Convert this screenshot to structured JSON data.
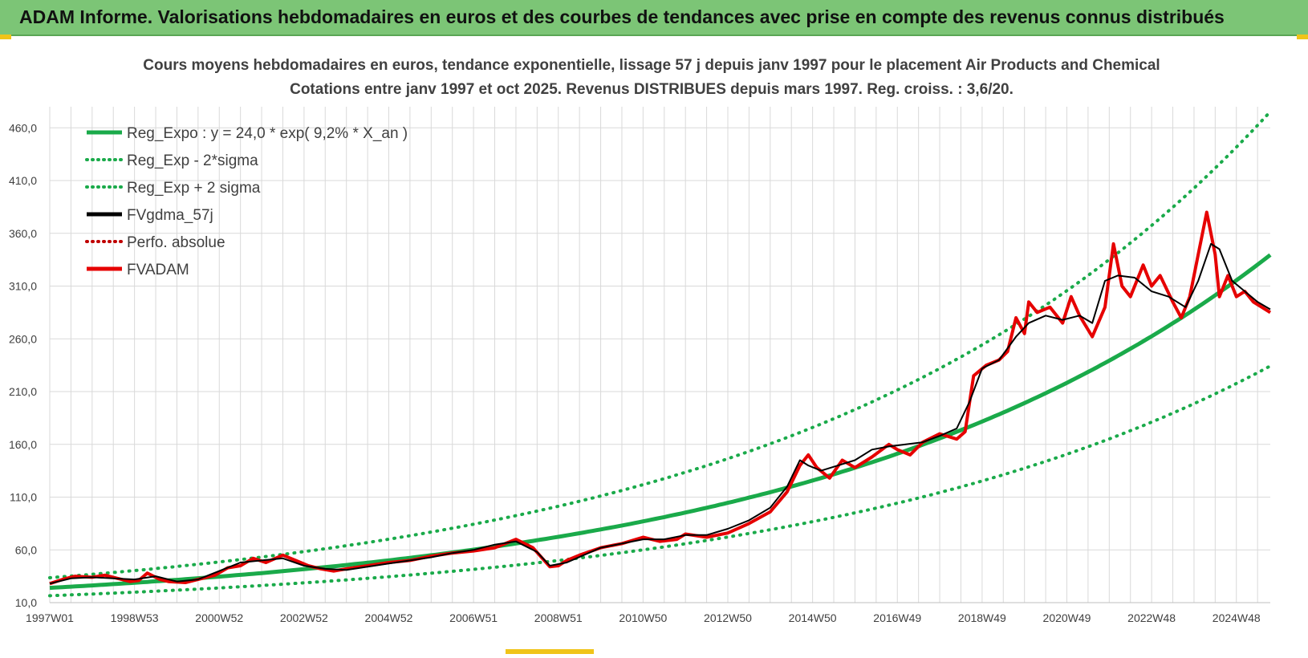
{
  "header": {
    "title": "ADAM Informe. Valorisations hebdomadaires en euros et des courbes de tendances avec prise en compte des revenus connus distribués"
  },
  "colors": {
    "header_bg": "#7cc576",
    "trend": "#1aaa4a",
    "fvadam": "#e60000",
    "fvgdma": "#000000",
    "perfo": "#c00000",
    "grid": "#d9d9d9",
    "corner_accent": "#f0c419"
  },
  "chart_data": {
    "type": "line",
    "title": "Cours moyens hebdomadaires en euros, tendance exponentielle, lissage 57 j depuis janv 1997 pour le placement Air Products and Chemical",
    "subtitle": "Cotations entre janv 1997 et oct 2025. Revenus DISTRIBUES depuis mars 1997. Reg. croiss. : 3,6/20.",
    "xlabel": "",
    "ylabel": "",
    "xlim": [
      1997.0,
      2025.8
    ],
    "ylim": [
      10,
      480
    ],
    "y_ticks": [
      10,
      60,
      110,
      160,
      210,
      260,
      310,
      360,
      410,
      460
    ],
    "y_tick_labels": [
      "10,0",
      "60,0",
      "110,0",
      "160,0",
      "210,0",
      "260,0",
      "310,0",
      "360,0",
      "410,0",
      "460,0"
    ],
    "x_ticks": [
      1997.0,
      1999.0,
      2001.0,
      2003.0,
      2005.0,
      2007.0,
      2009.0,
      2011.0,
      2013.0,
      2015.0,
      2017.0,
      2019.0,
      2021.0,
      2023.0,
      2025.0
    ],
    "x_tick_labels": [
      "1997W01",
      "1998W53",
      "2000W52",
      "2002W52",
      "2004W52",
      "2006W51",
      "2008W51",
      "2010W50",
      "2012W50",
      "2014W50",
      "2016W49",
      "2018W49",
      "2020W49",
      "2022W48",
      "2024W48"
    ],
    "legend": [
      {
        "label": "Reg_Expo : y = 24,0 * exp( 9,2% *  X_an )",
        "style": "solid",
        "color": "#1aaa4a"
      },
      {
        "label": "Reg_Exp - 2*sigma",
        "style": "dotted",
        "color": "#1aaa4a"
      },
      {
        "label": "Reg_Exp + 2 sigma",
        "style": "dotted",
        "color": "#1aaa4a"
      },
      {
        "label": "FVgdma_57j",
        "style": "solid",
        "color": "#000000"
      },
      {
        "label": "Perfo. absolue",
        "style": "dotted",
        "color": "#c00000"
      },
      {
        "label": "FVADAM",
        "style": "solid",
        "color": "#e60000"
      }
    ],
    "legend_placement": "top-left",
    "grid": true,
    "series": [
      {
        "name": "Reg_Expo",
        "formula": "24.0 * exp(0.092 * (x - 1997))"
      },
      {
        "name": "Reg_Exp - 2*sigma",
        "formula": "0.69 * Reg_Expo"
      },
      {
        "name": "Reg_Exp + 2 sigma",
        "formula": "1.40 * Reg_Expo"
      },
      {
        "name": "FVADAM",
        "x": [
          1997.0,
          1997.3,
          1997.6,
          1998.0,
          1998.3,
          1998.6,
          1998.9,
          1999.1,
          1999.3,
          1999.6,
          1999.8,
          2000.2,
          2000.5,
          2000.9,
          2001.2,
          2001.5,
          2001.8,
          2002.1,
          2002.5,
          2002.8,
          2003.1,
          2003.4,
          2003.7,
          2004.0,
          2004.5,
          2005.0,
          2005.5,
          2006.0,
          2006.5,
          2007.0,
          2007.5,
          2008.0,
          2008.4,
          2008.8,
          2009.0,
          2009.2,
          2009.5,
          2010.0,
          2010.5,
          2011.0,
          2011.4,
          2011.8,
          2012.0,
          2012.5,
          2013.0,
          2013.5,
          2014.0,
          2014.4,
          2014.7,
          2014.9,
          2015.1,
          2015.4,
          2015.7,
          2016.0,
          2016.4,
          2016.8,
          2017.0,
          2017.3,
          2017.6,
          2018.0,
          2018.4,
          2018.6,
          2018.8,
          2019.1,
          2019.4,
          2019.6,
          2019.8,
          2020.0,
          2020.1,
          2020.3,
          2020.6,
          2020.9,
          2021.1,
          2021.3,
          2021.6,
          2021.9,
          2022.1,
          2022.3,
          2022.5,
          2022.8,
          2023.0,
          2023.2,
          2023.5,
          2023.7,
          2023.9,
          2024.1,
          2024.3,
          2024.5,
          2024.6,
          2024.8,
          2024.9,
          2025.0,
          2025.2,
          2025.4,
          2025.6,
          2025.8
        ],
        "values": [
          28,
          32,
          35,
          34,
          36,
          33,
          30,
          31,
          38,
          32,
          30,
          29,
          32,
          36,
          43,
          45,
          52,
          48,
          55,
          50,
          45,
          42,
          40,
          42,
          45,
          48,
          50,
          54,
          57,
          59,
          62,
          70,
          62,
          44,
          45,
          50,
          55,
          62,
          66,
          72,
          68,
          70,
          75,
          72,
          76,
          85,
          96,
          115,
          140,
          150,
          138,
          128,
          145,
          138,
          148,
          160,
          155,
          150,
          162,
          170,
          165,
          172,
          225,
          235,
          240,
          248,
          280,
          265,
          295,
          285,
          290,
          275,
          300,
          282,
          262,
          290,
          350,
          310,
          300,
          330,
          310,
          320,
          295,
          280,
          300,
          340,
          380,
          340,
          300,
          320,
          310,
          300,
          305,
          295,
          290,
          285
        ]
      },
      {
        "name": "FVgdma_57j",
        "x": [
          1997.0,
          1997.5,
          1998.0,
          1998.5,
          1999.0,
          1999.5,
          2000.0,
          2000.5,
          2001.0,
          2001.5,
          2002.0,
          2002.5,
          2003.0,
          2003.5,
          2004.0,
          2004.5,
          2005.0,
          2005.5,
          2006.0,
          2006.5,
          2007.0,
          2007.5,
          2008.0,
          2008.5,
          2008.8,
          2009.2,
          2009.6,
          2010.0,
          2010.5,
          2011.0,
          2011.5,
          2012.0,
          2012.5,
          2013.0,
          2013.5,
          2014.0,
          2014.4,
          2014.7,
          2014.9,
          2015.2,
          2015.6,
          2016.0,
          2016.4,
          2016.8,
          2017.2,
          2017.6,
          2018.0,
          2018.4,
          2018.7,
          2019.0,
          2019.4,
          2019.8,
          2020.1,
          2020.5,
          2020.9,
          2021.3,
          2021.6,
          2021.9,
          2022.2,
          2022.6,
          2023.0,
          2023.4,
          2023.8,
          2024.1,
          2024.4,
          2024.6,
          2024.9,
          2025.2,
          2025.5,
          2025.8
        ],
        "values": [
          28,
          33,
          34,
          33,
          32,
          35,
          30,
          32,
          40,
          48,
          50,
          52,
          45,
          42,
          41,
          44,
          47,
          50,
          53,
          57,
          60,
          65,
          68,
          58,
          45,
          48,
          55,
          62,
          66,
          70,
          70,
          74,
          74,
          80,
          88,
          100,
          120,
          145,
          140,
          135,
          140,
          145,
          155,
          158,
          160,
          162,
          168,
          175,
          200,
          232,
          240,
          262,
          275,
          282,
          278,
          282,
          275,
          315,
          320,
          318,
          305,
          300,
          290,
          315,
          350,
          345,
          315,
          305,
          295,
          288
        ]
      }
    ]
  }
}
